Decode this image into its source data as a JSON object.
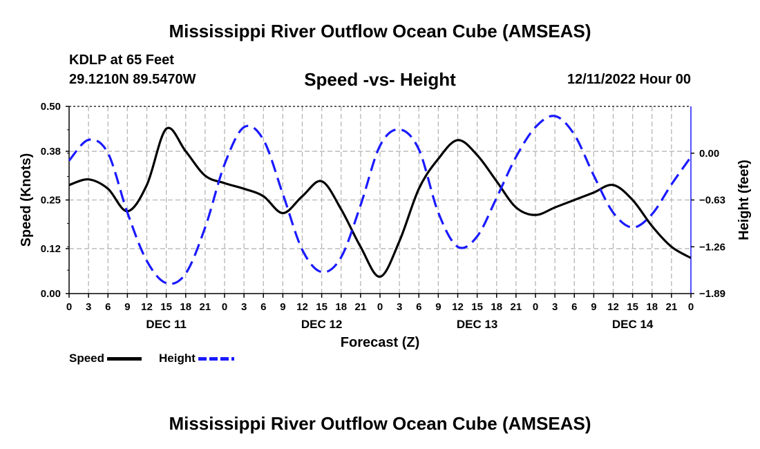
{
  "title": "Mississippi River Outflow Ocean Cube (AMSEAS)",
  "station": "KDLP at 65 Feet",
  "coords": "29.1210N  89.5470W",
  "subtitle": "Speed -vs- Height",
  "date": "12/11/2022 Hour 00",
  "footer_title": "Mississippi River Outflow Ocean Cube (AMSEAS)",
  "legend": {
    "speed_label": "Speed",
    "height_label": "Height"
  },
  "colors": {
    "speed": "#000000",
    "height": "#1a1aff",
    "grid": "#b5b5b5"
  },
  "chart_data": {
    "type": "line",
    "title": "Speed -vs- Height",
    "xlabel": "Forecast (Z)",
    "ylabel": "Speed (Knots)",
    "ylabel_right": "Height (feet)",
    "xlim": [
      0,
      96
    ],
    "ylim": [
      0,
      0.5
    ],
    "ylim_right": [
      -1.89,
      0.63
    ],
    "y_ticks": [
      "0.00",
      "0.12",
      "0.25",
      "0.38",
      "0.50"
    ],
    "y_ticks_right": [
      "−1.89",
      "−1.26",
      "−0.63",
      "0.00"
    ],
    "x_tick_labels": [
      "0",
      "3",
      "6",
      "9",
      "12",
      "15",
      "18",
      "21",
      "0",
      "3",
      "6",
      "9",
      "12",
      "15",
      "18",
      "21",
      "0",
      "3",
      "6",
      "9",
      "12",
      "15",
      "18",
      "21",
      "0",
      "3",
      "6",
      "9",
      "12",
      "15",
      "18",
      "21",
      "0"
    ],
    "day_labels": [
      {
        "label": "DEC 11",
        "hour": 15
      },
      {
        "label": "DEC 12",
        "hour": 39
      },
      {
        "label": "DEC 13",
        "hour": 63
      },
      {
        "label": "DEC 14",
        "hour": 87
      }
    ],
    "series": [
      {
        "name": "Speed",
        "axis": "left",
        "style": "solid",
        "x": [
          0,
          3,
          6,
          9,
          12,
          15,
          18,
          21,
          24,
          27,
          30,
          33,
          36,
          39,
          42,
          45,
          48,
          51,
          54,
          57,
          60,
          63,
          66,
          69,
          72,
          75,
          78,
          81,
          84,
          87,
          90,
          93,
          96
        ],
        "y": [
          0.29,
          0.305,
          0.28,
          0.22,
          0.29,
          0.44,
          0.38,
          0.315,
          0.295,
          0.28,
          0.26,
          0.215,
          0.26,
          0.3,
          0.225,
          0.125,
          0.045,
          0.14,
          0.28,
          0.36,
          0.41,
          0.37,
          0.3,
          0.23,
          0.21,
          0.23,
          0.25,
          0.27,
          0.29,
          0.25,
          0.18,
          0.125,
          0.095
        ]
      },
      {
        "name": "Height",
        "axis": "right",
        "style": "dashed",
        "x": [
          0,
          3,
          6,
          9,
          12,
          15,
          18,
          21,
          24,
          27,
          30,
          33,
          36,
          39,
          42,
          45,
          48,
          51,
          54,
          57,
          60,
          63,
          66,
          69,
          72,
          75,
          78,
          81,
          84,
          87,
          90,
          93,
          96
        ],
        "y": [
          -0.1,
          0.18,
          0.0,
          -0.8,
          -1.45,
          -1.75,
          -1.62,
          -1.0,
          -0.15,
          0.35,
          0.18,
          -0.55,
          -1.3,
          -1.6,
          -1.4,
          -0.7,
          0.1,
          0.32,
          0.05,
          -0.8,
          -1.26,
          -1.12,
          -0.6,
          -0.05,
          0.35,
          0.5,
          0.25,
          -0.3,
          -0.8,
          -1.0,
          -0.82,
          -0.42,
          -0.05
        ]
      }
    ]
  }
}
